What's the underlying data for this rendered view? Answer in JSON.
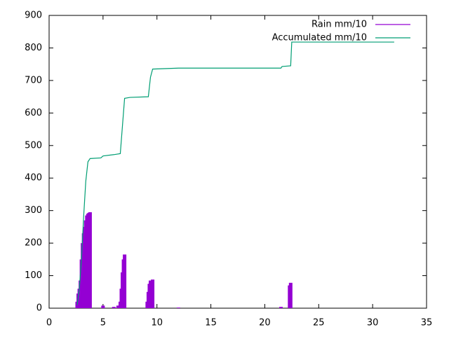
{
  "chart_data": {
    "type": "line",
    "xlim": [
      0,
      35
    ],
    "xticks": [
      0,
      5,
      10,
      15,
      20,
      25,
      30,
      35
    ],
    "ylim": [
      0,
      900
    ],
    "yticks": [
      0,
      100,
      200,
      300,
      400,
      500,
      600,
      700,
      800,
      900
    ],
    "legend": "top-right",
    "series": [
      {
        "name": "Rain mm/10",
        "color": "#9400d3",
        "style": "impulses",
        "x": [
          2.6,
          2.7,
          2.8,
          2.9,
          3.0,
          3.1,
          3.2,
          3.3,
          3.4,
          3.5,
          3.6,
          3.7,
          3.8,
          5.0,
          6.0,
          6.4,
          6.6,
          6.7,
          6.8,
          6.9,
          7.0,
          9.1,
          9.2,
          9.3,
          9.4,
          9.6,
          12.0,
          21.5,
          22.3,
          22.4
        ],
        "values": [
          20,
          45,
          60,
          85,
          150,
          200,
          230,
          250,
          270,
          285,
          290,
          293,
          295,
          8,
          4,
          8,
          20,
          60,
          110,
          150,
          165,
          20,
          50,
          75,
          85,
          88,
          2,
          4,
          70,
          78
        ]
      },
      {
        "name": "Accumulated mm/10",
        "color": "#009e73",
        "style": "lines",
        "x": [
          2.6,
          2.8,
          3.0,
          3.2,
          3.4,
          3.6,
          3.8,
          4.8,
          5.0,
          6.0,
          6.6,
          6.8,
          7.0,
          7.5,
          9.2,
          9.4,
          9.6,
          12.0,
          21.5,
          21.6,
          22.4,
          22.5,
          32.0
        ],
        "values": [
          10,
          60,
          150,
          280,
          390,
          450,
          460,
          462,
          468,
          472,
          475,
          560,
          645,
          648,
          650,
          710,
          735,
          738,
          738,
          743,
          745,
          818,
          818
        ]
      }
    ]
  }
}
